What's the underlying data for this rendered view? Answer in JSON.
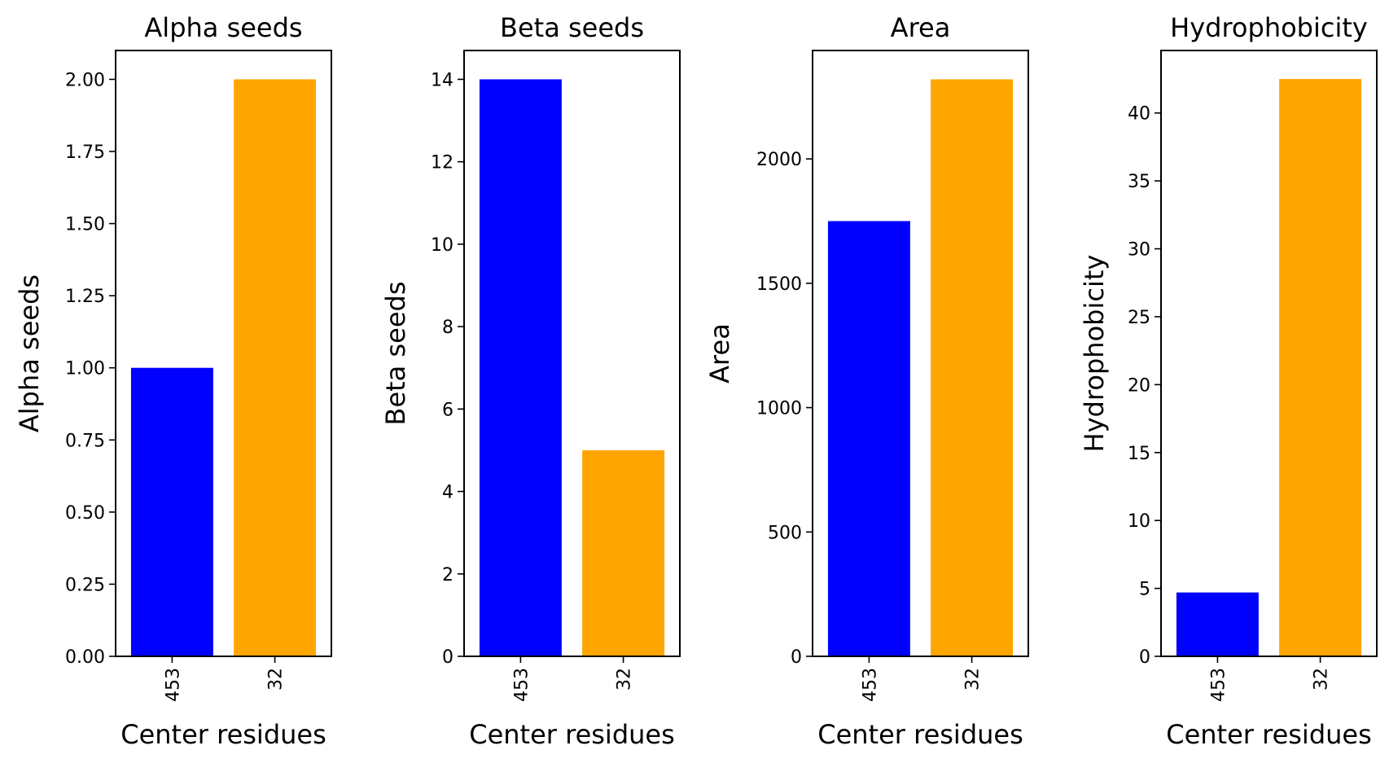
{
  "chart_data": [
    {
      "type": "bar",
      "title": "Alpha seeds",
      "xlabel": "Center residues",
      "ylabel": "Alpha seeds",
      "categories": [
        "453",
        "32"
      ],
      "values": [
        1.0,
        2.0
      ],
      "colors": [
        "#0000ff",
        "#ffa500"
      ],
      "ylim": [
        0,
        2.1
      ],
      "yticks": [
        "0.00",
        "0.25",
        "0.50",
        "0.75",
        "1.00",
        "1.25",
        "1.50",
        "1.75",
        "2.00"
      ],
      "grid": false
    },
    {
      "type": "bar",
      "title": "Beta seeds",
      "xlabel": "Center residues",
      "ylabel": "Beta seeds",
      "categories": [
        "453",
        "32"
      ],
      "values": [
        14,
        5
      ],
      "colors": [
        "#0000ff",
        "#ffa500"
      ],
      "ylim": [
        0,
        14.7
      ],
      "yticks": [
        "0",
        "2",
        "4",
        "6",
        "8",
        "10",
        "12",
        "14"
      ],
      "grid": false
    },
    {
      "type": "bar",
      "title": "Area",
      "xlabel": "Center residues",
      "ylabel": "Area",
      "categories": [
        "453",
        "32"
      ],
      "values": [
        1750,
        2320
      ],
      "colors": [
        "#0000ff",
        "#ffa500"
      ],
      "ylim": [
        0,
        2436
      ],
      "yticks": [
        "0",
        "500",
        "1000",
        "1500",
        "2000"
      ],
      "grid": false
    },
    {
      "type": "bar",
      "title": "Hydrophobicity",
      "xlabel": "Center residues",
      "ylabel": "Hydrophobicity",
      "categories": [
        "453",
        "32"
      ],
      "values": [
        4.7,
        42.5
      ],
      "colors": [
        "#0000ff",
        "#ffa500"
      ],
      "ylim": [
        0,
        44.6
      ],
      "yticks": [
        "0",
        "5",
        "10",
        "15",
        "20",
        "25",
        "30",
        "35",
        "40"
      ],
      "grid": false
    }
  ]
}
